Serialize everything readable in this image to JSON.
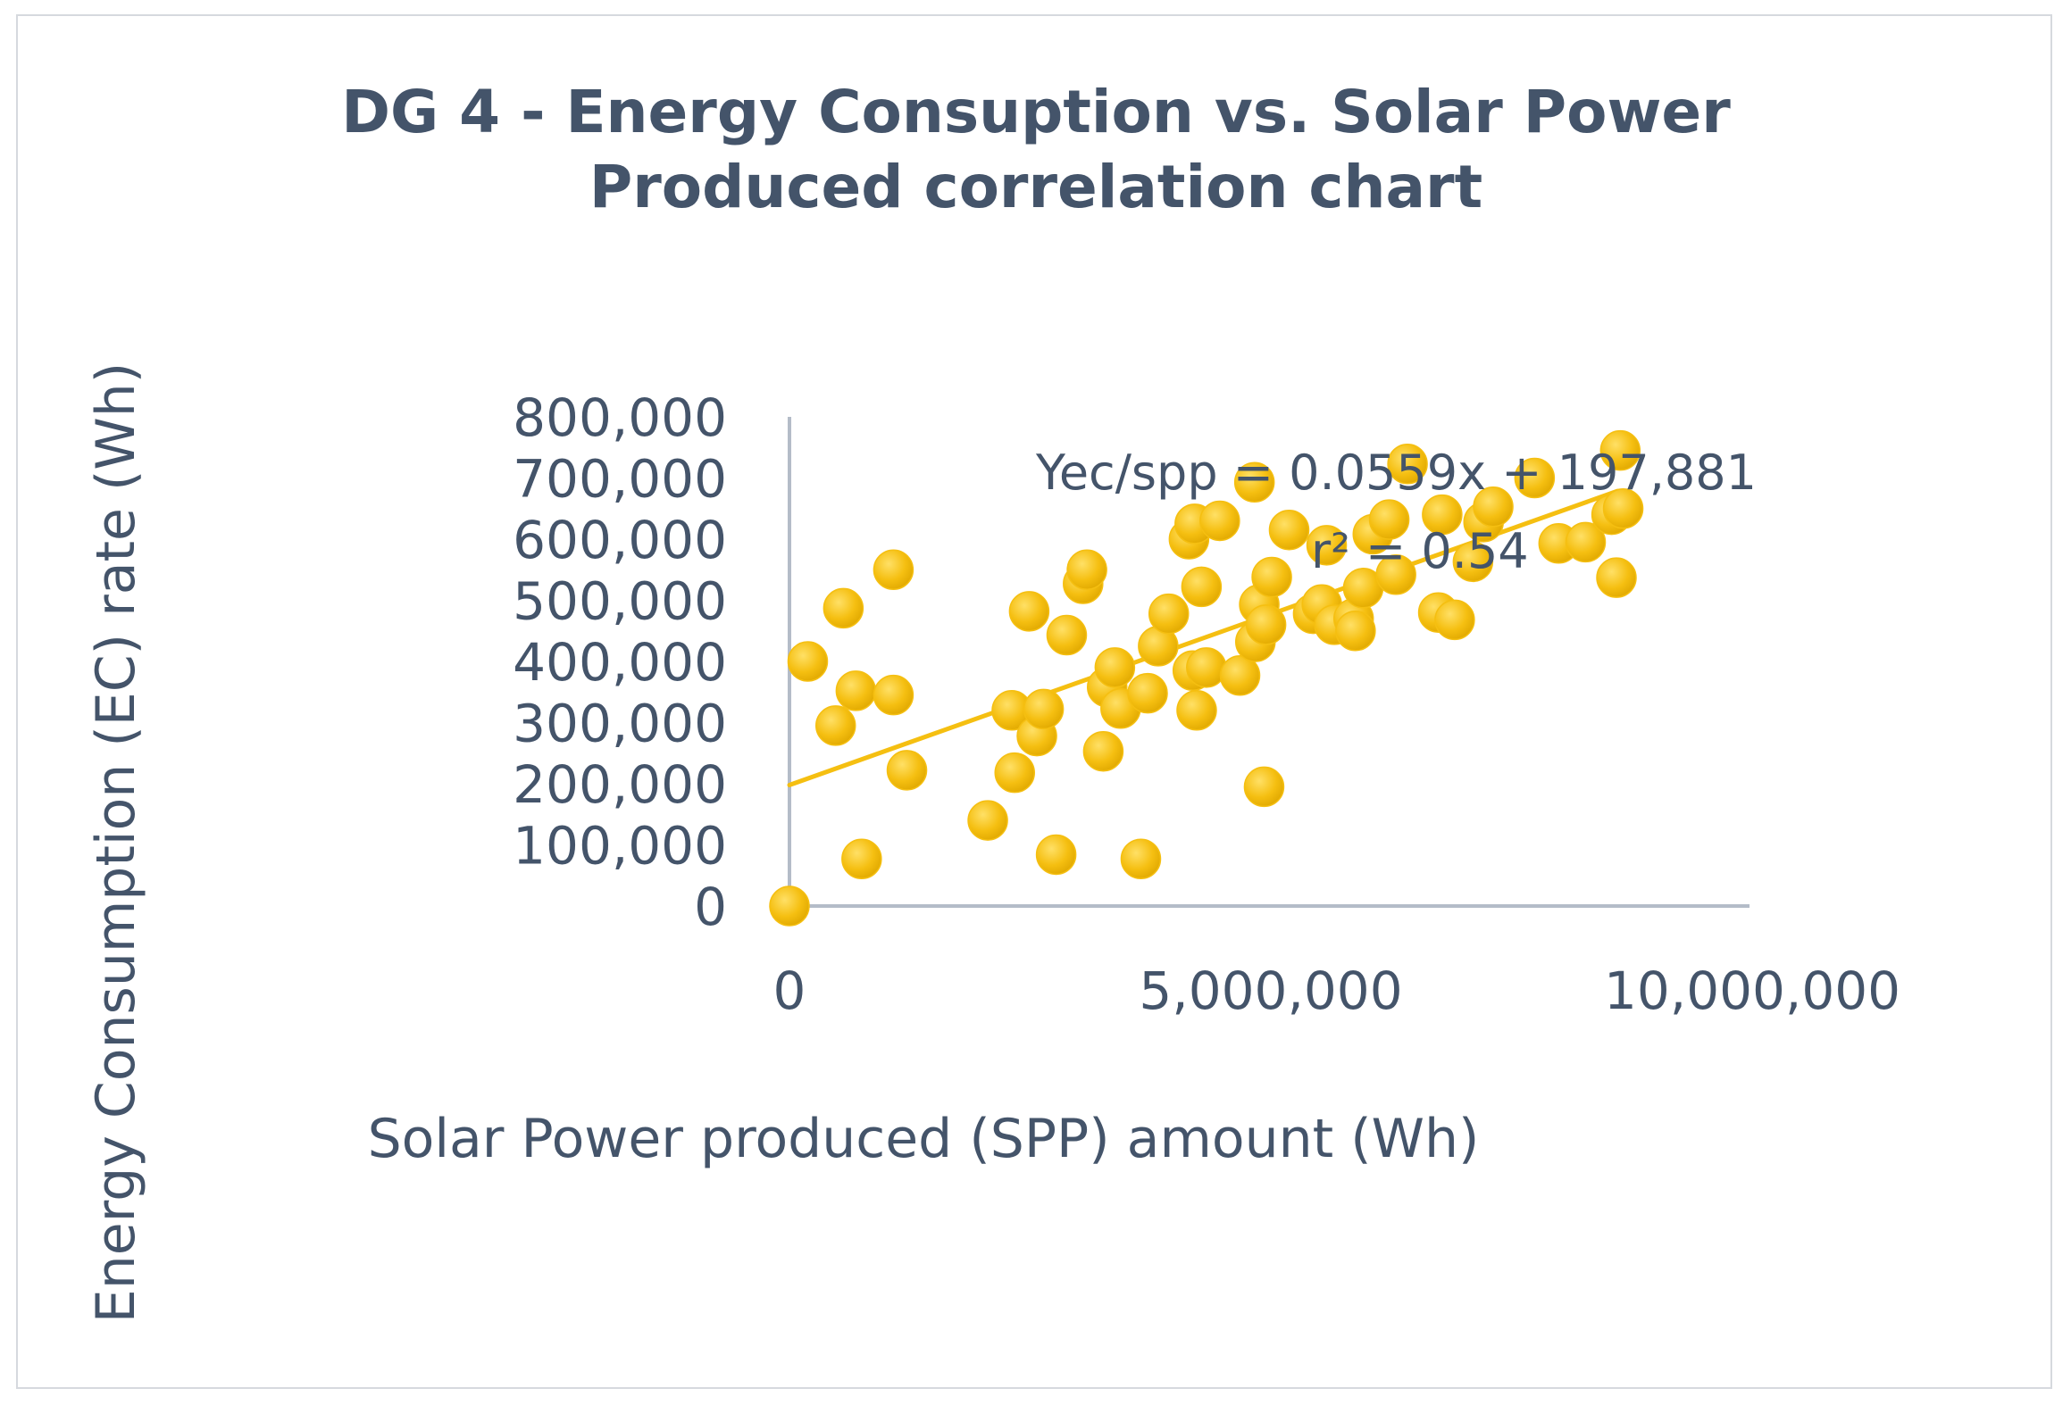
{
  "chart_data": {
    "type": "scatter",
    "title_lines": [
      "DG 4 - Energy Consuption vs. Solar Power",
      "Produced correlation chart"
    ],
    "xlabel": "Solar Power produced (SPP) amount (Wh)",
    "ylabel": "Energy Consumption (EC) rate (Wh)",
    "xlim": [
      0,
      10000000
    ],
    "ylim": [
      0,
      800000
    ],
    "x_ticks": [
      0,
      5000000,
      10000000
    ],
    "x_tick_labels": [
      "0",
      "5,000,000",
      "10,000,000"
    ],
    "y_ticks": [
      0,
      100000,
      200000,
      300000,
      400000,
      500000,
      600000,
      700000,
      800000
    ],
    "y_tick_labels": [
      "0",
      "100,000",
      "200,000",
      "300,000",
      "400,000",
      "500,000",
      "600,000",
      "700,000",
      "800,000"
    ],
    "grid": false,
    "marker_color": "#f5bf11",
    "trendline": {
      "slope": 0.0559,
      "intercept": 197881,
      "x_range": [
        0,
        8600000
      ],
      "color": "#f5bf11",
      "equation_label": "Yec/spp = 0.0559x + 197,881",
      "r2_label": "r² = 0.54"
    },
    "series": [
      {
        "name": "DG 4",
        "points": [
          [
            0,
            0
          ],
          [
            190000,
            400000
          ],
          [
            480000,
            295000
          ],
          [
            560000,
            487000
          ],
          [
            690000,
            352000
          ],
          [
            750000,
            77000
          ],
          [
            1080000,
            550000
          ],
          [
            1080000,
            345000
          ],
          [
            1220000,
            222000
          ],
          [
            2060000,
            140000
          ],
          [
            2310000,
            320000
          ],
          [
            2340000,
            218000
          ],
          [
            2490000,
            482000
          ],
          [
            2570000,
            278000
          ],
          [
            2640000,
            322000
          ],
          [
            2770000,
            84000
          ],
          [
            2880000,
            443000
          ],
          [
            3050000,
            527000
          ],
          [
            3090000,
            550000
          ],
          [
            3260000,
            253000
          ],
          [
            3300000,
            358000
          ],
          [
            3380000,
            390000
          ],
          [
            3440000,
            323000
          ],
          [
            3650000,
            77000
          ],
          [
            3720000,
            348000
          ],
          [
            3830000,
            425000
          ],
          [
            3940000,
            478000
          ],
          [
            4150000,
            600000
          ],
          [
            4210000,
            625000
          ],
          [
            4190000,
            385000
          ],
          [
            4230000,
            320000
          ],
          [
            4280000,
            522000
          ],
          [
            4330000,
            390000
          ],
          [
            4470000,
            630000
          ],
          [
            4680000,
            377000
          ],
          [
            4830000,
            693000
          ],
          [
            4840000,
            432000
          ],
          [
            4880000,
            493000
          ],
          [
            4930000,
            195000
          ],
          [
            4950000,
            460000
          ],
          [
            5010000,
            538000
          ],
          [
            5190000,
            615000
          ],
          [
            5440000,
            478000
          ],
          [
            5530000,
            493000
          ],
          [
            5580000,
            590000
          ],
          [
            5660000,
            460000
          ],
          [
            5860000,
            470000
          ],
          [
            5880000,
            450000
          ],
          [
            5960000,
            520000
          ],
          [
            6060000,
            608000
          ],
          [
            6230000,
            632000
          ],
          [
            6300000,
            542000
          ],
          [
            6420000,
            723000
          ],
          [
            6740000,
            480000
          ],
          [
            6780000,
            640000
          ],
          [
            6910000,
            468000
          ],
          [
            7100000,
            563000
          ],
          [
            7210000,
            628000
          ],
          [
            7310000,
            653000
          ],
          [
            7740000,
            700000
          ],
          [
            7990000,
            593000
          ],
          [
            8270000,
            595000
          ],
          [
            8540000,
            640000
          ],
          [
            8590000,
            537000
          ],
          [
            8660000,
            650000
          ],
          [
            8630000,
            745000
          ]
        ]
      }
    ]
  }
}
